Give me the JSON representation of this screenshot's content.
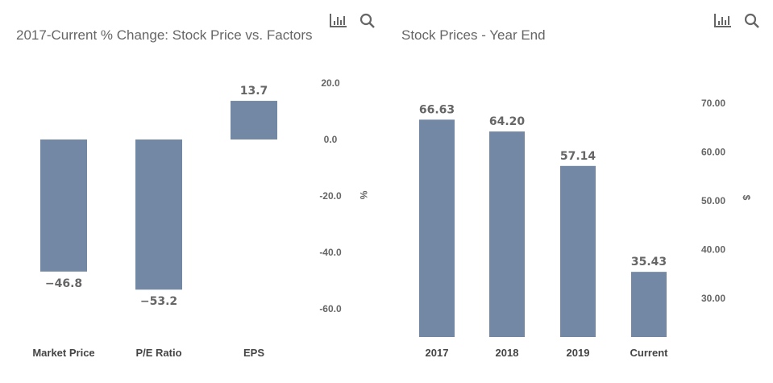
{
  "colors": {
    "bar": "#7388a5"
  },
  "icons": [
    "bar-chart-icon",
    "search-icon"
  ],
  "chart_data": [
    {
      "type": "bar",
      "title": "2017-Current % Change: Stock Price vs. Factors",
      "categories": [
        "Market Price",
        "P/E Ratio",
        "EPS"
      ],
      "values": [
        -46.8,
        -53.2,
        13.7
      ],
      "data_labels": [
        "-46.8",
        "-53.2",
        "13.7"
      ],
      "ylabel": "%",
      "yticks": [
        "20.0",
        "0.0",
        "-20.0",
        "-40.0",
        "-60.0"
      ],
      "ytick_values": [
        20,
        0,
        -20,
        -40,
        -60
      ],
      "ylim": [
        -70,
        25
      ],
      "y_axis": "right",
      "grid": false
    },
    {
      "type": "bar",
      "title": "Stock Prices - Year End",
      "categories": [
        "2017",
        "2018",
        "2019",
        "Current"
      ],
      "values": [
        66.63,
        64.2,
        57.14,
        35.43
      ],
      "data_labels": [
        "66.63",
        "64.20",
        "57.14",
        "35.43"
      ],
      "ylabel": "$",
      "yticks": [
        "70.00",
        "60.00",
        "50.00",
        "40.00",
        "30.00"
      ],
      "ytick_values": [
        70,
        60,
        50,
        40,
        30
      ],
      "ylim": [
        22,
        75
      ],
      "y_axis": "right",
      "grid": false
    }
  ]
}
